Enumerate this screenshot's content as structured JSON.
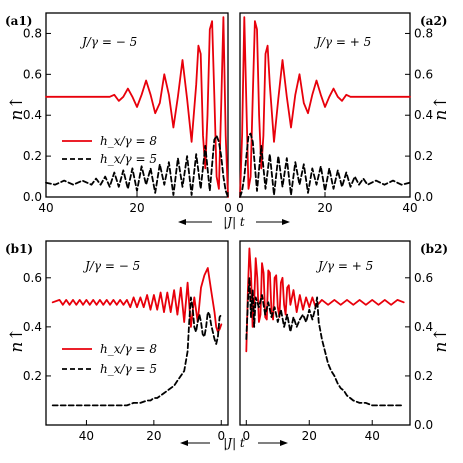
{
  "figure": {
    "xlabel": "|J| t",
    "ylabel": "n↑",
    "legend": [
      {
        "label": "h_x/γ = 8",
        "color": "#e8000b",
        "dash": "solid"
      },
      {
        "label": "h_x/γ = 5",
        "color": "#000000",
        "dash": "dashed"
      }
    ]
  },
  "chart_data": [
    {
      "id": "a1",
      "type": "line",
      "panel_label": "(a1)",
      "annotation": "J/γ = − 5",
      "xlim": [
        40,
        0
      ],
      "ylim": [
        0,
        0.9
      ],
      "xticks": [
        40,
        20,
        0
      ],
      "yticks": [
        0.0,
        0.2,
        0.4,
        0.6,
        0.8
      ],
      "ytick_side": "left",
      "series": [
        {
          "name": "h_x/γ = 8",
          "color": "#e8000b",
          "dash": "solid",
          "x": [
            40,
            36,
            33,
            30,
            28,
            26,
            25,
            24,
            23,
            22,
            21,
            20,
            19,
            18,
            17,
            16,
            15,
            14,
            13,
            12,
            11,
            10,
            9,
            8,
            7,
            6.5,
            6,
            5.5,
            5,
            4.5,
            4,
            3.5,
            3,
            2.5,
            2,
            1.5,
            1,
            0.5,
            0
          ],
          "y": [
            0.49,
            0.49,
            0.49,
            0.49,
            0.49,
            0.49,
            0.5,
            0.47,
            0.49,
            0.53,
            0.49,
            0.44,
            0.5,
            0.57,
            0.5,
            0.41,
            0.46,
            0.6,
            0.5,
            0.34,
            0.49,
            0.67,
            0.48,
            0.27,
            0.55,
            0.74,
            0.7,
            0.3,
            0.14,
            0.4,
            0.82,
            0.86,
            0.5,
            0.1,
            0.04,
            0.45,
            0.88,
            0.3,
            0.0
          ]
        },
        {
          "name": "h_x/γ = 5",
          "color": "#000000",
          "dash": "dashed",
          "x": [
            40,
            38,
            36,
            34,
            32,
            30,
            29,
            28,
            27,
            26,
            25,
            24,
            23,
            22,
            21,
            20,
            19,
            18,
            17,
            16,
            15,
            14,
            13,
            12,
            11,
            10,
            9,
            8,
            7,
            6,
            5,
            4,
            3,
            2.5,
            2,
            1.5,
            1,
            0.5,
            0
          ],
          "y": [
            0.07,
            0.06,
            0.08,
            0.06,
            0.08,
            0.06,
            0.09,
            0.06,
            0.1,
            0.05,
            0.12,
            0.05,
            0.13,
            0.04,
            0.14,
            0.03,
            0.15,
            0.06,
            0.14,
            0.02,
            0.16,
            0.06,
            0.17,
            0.01,
            0.19,
            0.05,
            0.2,
            0.01,
            0.21,
            0.04,
            0.25,
            0.03,
            0.28,
            0.3,
            0.27,
            0.2,
            0.1,
            0.03,
            0.0
          ]
        }
      ]
    },
    {
      "id": "a2",
      "type": "line",
      "panel_label": "(a2)",
      "annotation": "J/γ = + 5",
      "xlim": [
        0,
        40
      ],
      "ylim": [
        0,
        0.9
      ],
      "xticks": [
        0,
        20,
        40
      ],
      "yticks": [
        0.0,
        0.2,
        0.4,
        0.6,
        0.8
      ],
      "ytick_side": "right",
      "series": [
        {
          "name": "h_x/γ = 8",
          "color": "#e8000b",
          "dash": "solid",
          "x": [
            0,
            0.5,
            1,
            1.5,
            2,
            2.5,
            3,
            3.5,
            4,
            4.5,
            5,
            5.5,
            6,
            6.5,
            7,
            8,
            9,
            10,
            11,
            12,
            13,
            14,
            15,
            16,
            17,
            18,
            19,
            20,
            21,
            22,
            23,
            24,
            25,
            26,
            28,
            30,
            33,
            36,
            40
          ],
          "y": [
            0.0,
            0.3,
            0.88,
            0.45,
            0.04,
            0.1,
            0.5,
            0.86,
            0.82,
            0.4,
            0.14,
            0.3,
            0.7,
            0.74,
            0.55,
            0.27,
            0.48,
            0.67,
            0.49,
            0.34,
            0.5,
            0.6,
            0.46,
            0.41,
            0.5,
            0.57,
            0.5,
            0.44,
            0.49,
            0.53,
            0.49,
            0.47,
            0.5,
            0.49,
            0.49,
            0.49,
            0.49,
            0.49,
            0.49
          ]
        },
        {
          "name": "h_x/γ = 5",
          "color": "#000000",
          "dash": "dashed",
          "x": [
            0,
            0.5,
            1,
            1.5,
            2,
            2.5,
            3,
            4,
            5,
            6,
            7,
            8,
            9,
            10,
            11,
            12,
            13,
            14,
            15,
            16,
            17,
            18,
            19,
            20,
            21,
            22,
            23,
            24,
            25,
            26,
            27,
            28,
            29,
            30,
            32,
            34,
            36,
            38,
            40
          ],
          "y": [
            0.0,
            0.03,
            0.1,
            0.2,
            0.3,
            0.31,
            0.27,
            0.03,
            0.25,
            0.04,
            0.21,
            0.01,
            0.2,
            0.05,
            0.19,
            0.01,
            0.17,
            0.06,
            0.16,
            0.02,
            0.14,
            0.06,
            0.15,
            0.03,
            0.14,
            0.04,
            0.13,
            0.05,
            0.12,
            0.05,
            0.1,
            0.06,
            0.09,
            0.06,
            0.08,
            0.06,
            0.08,
            0.06,
            0.07
          ]
        }
      ]
    },
    {
      "id": "b1",
      "type": "line",
      "panel_label": "(b1)",
      "annotation": "J/γ = − 5",
      "xlim": [
        52,
        -2
      ],
      "ylim": [
        0,
        0.75
      ],
      "xticks": [
        40,
        20,
        0
      ],
      "yticks": [
        0.2,
        0.4,
        0.6
      ],
      "ytick_side": "left",
      "series": [
        {
          "name": "h_x/γ = 8",
          "color": "#e8000b",
          "dash": "solid",
          "x": [
            50,
            48,
            47,
            46,
            45,
            44,
            43,
            42,
            41,
            40,
            39,
            38,
            37,
            36,
            35,
            34,
            33,
            32,
            31,
            30,
            29,
            28,
            27,
            26,
            25,
            24,
            23,
            22,
            21,
            20,
            19,
            18,
            17,
            16,
            15,
            14,
            13,
            12,
            11,
            10,
            9,
            8,
            7,
            6,
            5,
            4,
            3,
            2,
            1.5,
            1,
            0.5,
            0
          ],
          "y": [
            0.5,
            0.51,
            0.49,
            0.51,
            0.49,
            0.51,
            0.49,
            0.51,
            0.49,
            0.51,
            0.49,
            0.51,
            0.49,
            0.51,
            0.49,
            0.51,
            0.49,
            0.51,
            0.49,
            0.51,
            0.49,
            0.51,
            0.48,
            0.52,
            0.48,
            0.52,
            0.48,
            0.53,
            0.47,
            0.53,
            0.47,
            0.54,
            0.46,
            0.54,
            0.46,
            0.55,
            0.45,
            0.56,
            0.42,
            0.58,
            0.4,
            0.52,
            0.42,
            0.56,
            0.61,
            0.64,
            0.55,
            0.46,
            0.4,
            0.38,
            0.39,
            0.41
          ]
        },
        {
          "name": "h_x/γ = 5",
          "color": "#000000",
          "dash": "dashed",
          "x": [
            50,
            45,
            40,
            35,
            30,
            28,
            26,
            24,
            22,
            21,
            20,
            19,
            18,
            17,
            16,
            15,
            14,
            13,
            12,
            11,
            10,
            9.5,
            9,
            8.5,
            8,
            7.5,
            7,
            6.5,
            6,
            5.5,
            5,
            4.5,
            4,
            3.5,
            3,
            2.5,
            2,
            1.5,
            1,
            0.5,
            0
          ],
          "y": [
            0.08,
            0.08,
            0.08,
            0.08,
            0.08,
            0.08,
            0.09,
            0.09,
            0.1,
            0.1,
            0.11,
            0.11,
            0.12,
            0.13,
            0.14,
            0.15,
            0.16,
            0.18,
            0.2,
            0.22,
            0.3,
            0.42,
            0.52,
            0.48,
            0.4,
            0.38,
            0.42,
            0.45,
            0.42,
            0.37,
            0.36,
            0.4,
            0.46,
            0.45,
            0.41,
            0.38,
            0.35,
            0.33,
            0.36,
            0.44,
            0.45
          ]
        }
      ]
    },
    {
      "id": "b2",
      "type": "line",
      "panel_label": "(b2)",
      "annotation": "J/γ = + 5",
      "xlim": [
        -2,
        52
      ],
      "ylim": [
        0,
        0.75
      ],
      "xticks": [
        0,
        20,
        40
      ],
      "yticks": [
        0.0,
        0.2,
        0.4,
        0.6
      ],
      "ytick_side": "right",
      "series": [
        {
          "name": "h_x/γ = 8",
          "color": "#e8000b",
          "dash": "solid",
          "x": [
            0,
            0.5,
            1,
            1.5,
            2,
            2.5,
            3,
            3.5,
            4,
            4.5,
            5,
            5.5,
            6,
            6.5,
            7,
            7.5,
            8,
            8.5,
            9,
            9.5,
            10,
            10.5,
            11,
            11.5,
            12,
            12.5,
            13,
            13.5,
            14,
            15,
            16,
            17,
            18,
            19,
            20,
            21,
            22,
            24,
            26,
            28,
            30,
            32,
            34,
            36,
            38,
            40,
            42,
            44,
            46,
            48,
            50
          ],
          "y": [
            0.3,
            0.55,
            0.72,
            0.62,
            0.4,
            0.5,
            0.68,
            0.6,
            0.42,
            0.45,
            0.66,
            0.62,
            0.44,
            0.43,
            0.63,
            0.62,
            0.46,
            0.43,
            0.6,
            0.61,
            0.48,
            0.44,
            0.58,
            0.6,
            0.49,
            0.45,
            0.56,
            0.57,
            0.49,
            0.55,
            0.46,
            0.53,
            0.47,
            0.52,
            0.48,
            0.52,
            0.48,
            0.51,
            0.49,
            0.51,
            0.49,
            0.51,
            0.49,
            0.51,
            0.49,
            0.51,
            0.49,
            0.51,
            0.49,
            0.51,
            0.5
          ]
        },
        {
          "name": "h_x/γ = 5",
          "color": "#000000",
          "dash": "dashed",
          "x": [
            0,
            0.5,
            1,
            1.5,
            2,
            2.5,
            3,
            4,
            5,
            6,
            7,
            8,
            9,
            10,
            11,
            12,
            13,
            14,
            15,
            16,
            17,
            18,
            19,
            20,
            21,
            22,
            22.5,
            23,
            24,
            25,
            26,
            27,
            28,
            29,
            30,
            31,
            32,
            33,
            34,
            36,
            38,
            40,
            42,
            45,
            50
          ],
          "y": [
            0.35,
            0.5,
            0.6,
            0.44,
            0.55,
            0.4,
            0.52,
            0.48,
            0.53,
            0.45,
            0.5,
            0.44,
            0.48,
            0.42,
            0.47,
            0.4,
            0.45,
            0.38,
            0.44,
            0.4,
            0.43,
            0.45,
            0.42,
            0.47,
            0.43,
            0.48,
            0.52,
            0.42,
            0.35,
            0.3,
            0.25,
            0.22,
            0.2,
            0.17,
            0.15,
            0.14,
            0.12,
            0.11,
            0.1,
            0.09,
            0.09,
            0.08,
            0.08,
            0.08,
            0.08
          ]
        }
      ]
    }
  ]
}
